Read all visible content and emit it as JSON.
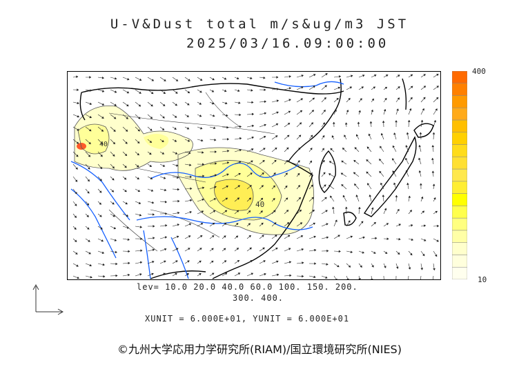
{
  "header": {
    "title_line1": "U-V&Dust total m/s&ug/m3 JST",
    "title_line2": "2025/03/16.09:00:00"
  },
  "colorbar": {
    "max_label": "400",
    "min_label": "10",
    "colors": [
      "#ff6a00",
      "#ff8000",
      "#ff9a00",
      "#ffaa1a",
      "#ffbf00",
      "#ffd000",
      "#ffdc1a",
      "#ffe033",
      "#ffe84d",
      "#ffee33",
      "#ffff00",
      "#ffff4d",
      "#ffff80",
      "#ffffa6",
      "#ffffcc",
      "#ffffdd",
      "#ffffee"
    ]
  },
  "levels": {
    "line1": "lev= 10.0 20.0 40.0 60.0 100. 150. 200.",
    "line2": "300. 400."
  },
  "units": {
    "text": "XUNIT = 6.000E+01, YUNIT = 6.000E+01"
  },
  "map": {
    "contour_label": "40",
    "colors": {
      "land": "#000000",
      "rivers": "#1560ff",
      "dust_low": "#ffffcc",
      "dust_mid": "#ffff99",
      "dust_high": "#ffee55",
      "dust_peak": "#ff5a2a"
    }
  },
  "footer": {
    "copyright": "©九州大学応用力学研究所(RIAM)/国立環境研究所(NIES)"
  }
}
